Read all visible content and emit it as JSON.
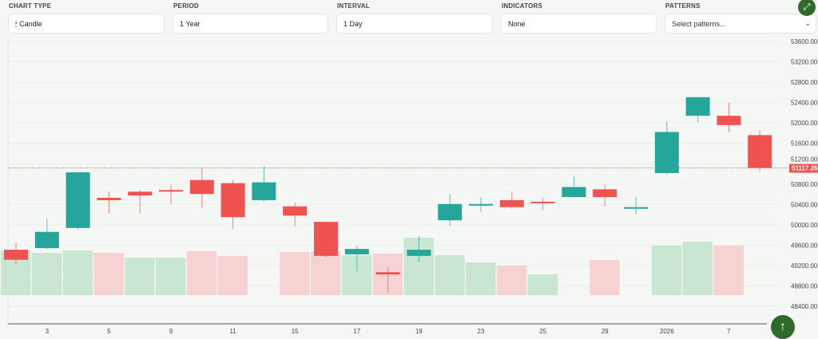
{
  "controls": {
    "chart_type": {
      "label": "CHART TYPE",
      "value": "Candle",
      "icon": "candle-icon"
    },
    "period": {
      "label": "PERIOD",
      "value": "1 Year"
    },
    "interval": {
      "label": "INTERVAL",
      "value": "1 Day"
    },
    "indicators": {
      "label": "INDICATORS",
      "value": "None"
    },
    "patterns": {
      "label": "PATTERNS",
      "placeholder": "Select patterns..."
    }
  },
  "buttons": {
    "fullscreen_icon": "expand-icon",
    "scroll_icon": "arrow-up-icon"
  },
  "colors": {
    "up": "#26a69a",
    "down": "#ef5350",
    "volume_up": "#c8e6d2",
    "volume_down": "#f7d2d2",
    "accent": "#2e6b2a"
  },
  "chart_data": {
    "type": "candlestick",
    "ylim": [
      48400,
      53600
    ],
    "y_ticks": [
      "53600.00",
      "53200.00",
      "52800.00",
      "52400.00",
      "52000.00",
      "51600.00",
      "51200.00",
      "50800.00",
      "50400.00",
      "50000.00",
      "49600.00",
      "49200.00",
      "48800.00",
      "48400.00"
    ],
    "x_tick_labels": [
      {
        "index": 1,
        "label": "3"
      },
      {
        "index": 3,
        "label": "5"
      },
      {
        "index": 5,
        "label": "9"
      },
      {
        "index": 7,
        "label": "11"
      },
      {
        "index": 9,
        "label": "15"
      },
      {
        "index": 11,
        "label": "17"
      },
      {
        "index": 13,
        "label": "19"
      },
      {
        "index": 15,
        "label": "23"
      },
      {
        "index": 17,
        "label": "25"
      },
      {
        "index": 19,
        "label": "29"
      },
      {
        "index": 21,
        "label": "2026"
      },
      {
        "index": 23,
        "label": "7"
      }
    ],
    "last_price": "51117.26",
    "candles": [
      {
        "o": 49511,
        "h": 49648,
        "l": 49238,
        "c": 49314,
        "v": 56,
        "vdir": "up"
      },
      {
        "o": 49542,
        "h": 50134,
        "l": 49526,
        "c": 49861,
        "v": 53,
        "vdir": "up"
      },
      {
        "o": 49937,
        "h": 51031,
        "l": 49906,
        "c": 51031,
        "v": 56,
        "vdir": "up"
      },
      {
        "o": 50530,
        "h": 50651,
        "l": 50226,
        "c": 50484,
        "v": 53,
        "vdir": "down"
      },
      {
        "o": 50651,
        "h": 50682,
        "l": 50226,
        "c": 50575,
        "v": 47,
        "vdir": "up"
      },
      {
        "o": 50682,
        "h": 50788,
        "l": 50408,
        "c": 50651,
        "v": 47,
        "vdir": "up"
      },
      {
        "o": 50879,
        "h": 51122,
        "l": 50332,
        "c": 50606,
        "v": 55,
        "vdir": "down"
      },
      {
        "o": 50818,
        "h": 50879,
        "l": 49922,
        "c": 50150,
        "v": 49,
        "vdir": "down"
      },
      {
        "o": 50484,
        "h": 51138,
        "l": 50454,
        "c": 50834,
        "v": 0,
        "vdir": "up"
      },
      {
        "o": 50362,
        "h": 50438,
        "l": 49967,
        "c": 50180,
        "v": 54,
        "vdir": "down"
      },
      {
        "o": 50058,
        "h": 50058,
        "l": 49359,
        "c": 49390,
        "v": 55,
        "vdir": "down"
      },
      {
        "o": 49420,
        "h": 49587,
        "l": 49086,
        "c": 49526,
        "v": 50,
        "vdir": "up"
      },
      {
        "o": 49070,
        "h": 49177,
        "l": 48660,
        "c": 49025,
        "v": 52,
        "vdir": "down"
      },
      {
        "o": 49390,
        "h": 49785,
        "l": 49268,
        "c": 49511,
        "v": 72,
        "vdir": "up"
      },
      {
        "o": 50089,
        "h": 50606,
        "l": 49982,
        "c": 50408,
        "v": 50,
        "vdir": "up"
      },
      {
        "o": 50378,
        "h": 50545,
        "l": 50256,
        "c": 50408,
        "v": 41,
        "vdir": "up"
      },
      {
        "o": 50484,
        "h": 50651,
        "l": 50317,
        "c": 50347,
        "v": 37,
        "vdir": "down"
      },
      {
        "o": 50454,
        "h": 50530,
        "l": 50286,
        "c": 50423,
        "v": 26,
        "vdir": "up"
      },
      {
        "o": 50545,
        "h": 50940,
        "l": 50530,
        "c": 50742,
        "v": 0,
        "vdir": "up"
      },
      {
        "o": 50697,
        "h": 50788,
        "l": 50362,
        "c": 50545,
        "v": 44,
        "vdir": "down"
      },
      {
        "o": 50317,
        "h": 50545,
        "l": 50210,
        "c": 50347,
        "v": 0,
        "vdir": "up"
      },
      {
        "o": 51016,
        "h": 52019,
        "l": 50986,
        "c": 51822,
        "v": 62,
        "vdir": "up"
      },
      {
        "o": 52141,
        "h": 52506,
        "l": 52019,
        "c": 52506,
        "v": 67,
        "vdir": "up"
      },
      {
        "o": 52141,
        "h": 52399,
        "l": 51822,
        "c": 51958,
        "v": 62,
        "vdir": "down"
      },
      {
        "o": 51761,
        "h": 51852,
        "l": 51046,
        "c": 51117.26,
        "v": 0,
        "vdir": "down"
      }
    ]
  }
}
